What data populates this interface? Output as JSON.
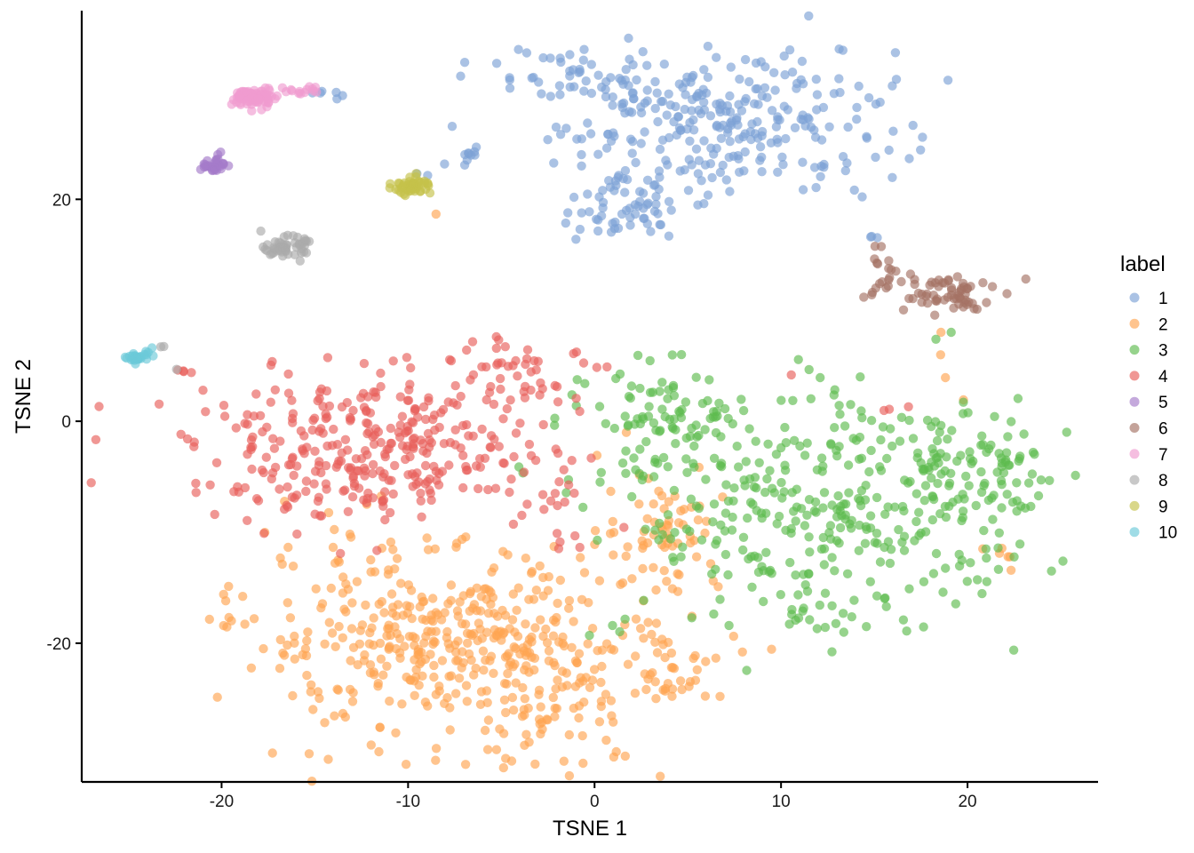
{
  "chart_data": {
    "type": "scatter",
    "title": "",
    "xlabel": "TSNE 1",
    "ylabel": "TSNE 2",
    "xlim": [
      -27.5,
      27
    ],
    "ylim": [
      -32.5,
      37
    ],
    "xticks": [
      -20,
      -10,
      0,
      10,
      20
    ],
    "yticks": [
      -20,
      0,
      20
    ],
    "xtick_labels": [
      "-20",
      "-10",
      "0",
      "10",
      "20"
    ],
    "ytick_labels": [
      "-20",
      "0",
      "20"
    ],
    "grid": false,
    "point_opacity": 0.65,
    "legend": {
      "title": "label",
      "position": "right"
    },
    "series": [
      {
        "name": "1",
        "color": "#7CA1D6",
        "clusters": [
          {
            "cx": 7,
            "cy": 27,
            "sx": 4.5,
            "sy": 3.2,
            "n": 280
          },
          {
            "cx": 1.5,
            "cy": 19.2,
            "sx": 1.8,
            "sy": 1.4,
            "n": 60
          },
          {
            "cx": -1,
            "cy": 31,
            "sx": 2.5,
            "sy": 1.5,
            "n": 40
          }
        ],
        "trails": [
          {
            "from": [
              -8,
              23.3
            ],
            "to": [
              -6,
              24.5
            ],
            "n": 10,
            "jitter": 0.3
          },
          {
            "from": [
              -15,
              29.7
            ],
            "to": [
              -13.5,
              29.5
            ],
            "n": 6,
            "jitter": 0.2
          },
          {
            "from": [
              14.8,
              17
            ],
            "to": [
              15.1,
              16.5
            ],
            "n": 3,
            "jitter": 0.15
          },
          {
            "from": [
              -9.5,
              22.5
            ],
            "to": [
              -9,
              22.2
            ],
            "n": 2,
            "jitter": 0.1
          }
        ]
      },
      {
        "name": "2",
        "color": "#FFA552",
        "clusters": [
          {
            "cx": -9.5,
            "cy": -19.5,
            "sx": 4.8,
            "sy": 4.3,
            "n": 340
          },
          {
            "cx": -2.5,
            "cy": -23.5,
            "sx": 3.2,
            "sy": 4.2,
            "n": 140
          },
          {
            "cx": 3.5,
            "cy": -9.5,
            "sx": 1.6,
            "sy": 3,
            "n": 70
          },
          {
            "cx": 4.5,
            "cy": -22.5,
            "sx": 2.2,
            "sy": 1.8,
            "n": 40
          }
        ],
        "trails": [
          {
            "from": [
              -20,
              -15
            ],
            "to": [
              -19.5,
              -18.8
            ],
            "n": 4,
            "jitter": 0.3
          },
          {
            "from": [
              21.5,
              -11.5
            ],
            "to": [
              22.5,
              -12.5
            ],
            "n": 6,
            "jitter": 0.4
          },
          {
            "from": [
              18.5,
              8
            ],
            "to": [
              19.5,
              2
            ],
            "n": 4,
            "jitter": 0.2
          },
          {
            "from": [
              -8.5,
              18.7
            ],
            "to": [
              -8.5,
              18.7
            ],
            "n": 1,
            "jitter": 0.05
          },
          {
            "from": [
              8.2,
              -20.8
            ],
            "to": [
              9.5,
              -20.5
            ],
            "n": 2,
            "jitter": 0.1
          }
        ]
      },
      {
        "name": "3",
        "color": "#5DBB4E",
        "clusters": [
          {
            "cx": 12.5,
            "cy": -8.5,
            "sx": 5.5,
            "sy": 5,
            "n": 320
          },
          {
            "cx": 20.5,
            "cy": -5.5,
            "sx": 2.5,
            "sy": 3.2,
            "n": 90
          },
          {
            "cx": 4,
            "cy": 0,
            "sx": 2.2,
            "sy": 2.5,
            "n": 90
          },
          {
            "cx": 11.2,
            "cy": -17.5,
            "sx": 0.8,
            "sy": 1.3,
            "n": 15
          }
        ],
        "trails": [
          {
            "from": [
              13.5,
              2
            ],
            "to": [
              13.5,
              -1
            ],
            "n": 6,
            "jitter": 0.4
          },
          {
            "from": [
              18.3,
              7.5
            ],
            "to": [
              18.3,
              7.5
            ],
            "n": 1,
            "jitter": 0.05
          },
          {
            "from": [
              -2,
              -0.5
            ],
            "to": [
              -0.5,
              3.5
            ],
            "n": 5,
            "jitter": 0.3
          },
          {
            "from": [
              0.5,
              -19.5
            ],
            "to": [
              2.5,
              -16.5
            ],
            "n": 4,
            "jitter": 0.4
          }
        ]
      },
      {
        "name": "4",
        "color": "#E8605B",
        "clusters": [
          {
            "cx": -12,
            "cy": -2.5,
            "sx": 4.8,
            "sy": 3.2,
            "n": 330
          },
          {
            "cx": -4,
            "cy": 4.5,
            "sx": 2.5,
            "sy": 1.8,
            "n": 50
          },
          {
            "cx": -2.5,
            "cy": -7,
            "sx": 1.5,
            "sy": 2.2,
            "n": 18
          }
        ],
        "trails": [
          {
            "from": [
              -22.2,
              4.5
            ],
            "to": [
              -21.8,
              4.4
            ],
            "n": 4,
            "jitter": 0.15
          },
          {
            "from": [
              10.5,
              4.2
            ],
            "to": [
              10.5,
              4.2
            ],
            "n": 1,
            "jitter": 0.05
          },
          {
            "from": [
              15,
              1
            ],
            "to": [
              16.5,
              1.2
            ],
            "n": 3,
            "jitter": 0.2
          }
        ]
      },
      {
        "name": "5",
        "color": "#A47BC9",
        "clusters": [
          {
            "cx": -20.5,
            "cy": 23.1,
            "sx": 0.35,
            "sy": 0.3,
            "n": 28
          }
        ],
        "trails": [
          {
            "from": [
              -20.3,
              23.4
            ],
            "to": [
              -20.2,
              24.2
            ],
            "n": 4,
            "jitter": 0.1
          }
        ]
      },
      {
        "name": "6",
        "color": "#A47264",
        "clusters": [
          {
            "cx": 18.5,
            "cy": 11.5,
            "sx": 1.4,
            "sy": 1.1,
            "n": 60
          },
          {
            "cx": 15.5,
            "cy": 13.5,
            "sx": 0.7,
            "sy": 1,
            "n": 14
          }
        ],
        "trails": [
          {
            "from": [
              14.6,
              11.5
            ],
            "to": [
              15.2,
              11.8
            ],
            "n": 4,
            "jitter": 0.2
          },
          {
            "from": [
              19.5,
              10.5
            ],
            "to": [
              20.3,
              10.4
            ],
            "n": 3,
            "jitter": 0.15
          }
        ]
      },
      {
        "name": "7",
        "color": "#F09BCF",
        "clusters": [
          {
            "cx": -18.2,
            "cy": 29.2,
            "sx": 0.55,
            "sy": 0.45,
            "n": 85
          }
        ],
        "trails": [
          {
            "from": [
              -16.5,
              29.6
            ],
            "to": [
              -14.8,
              29.8
            ],
            "n": 14,
            "jitter": 0.15
          }
        ]
      },
      {
        "name": "8",
        "color": "#AAAAAA",
        "clusters": [
          {
            "cx": -16.6,
            "cy": 15.7,
            "sx": 0.55,
            "sy": 0.45,
            "n": 55
          }
        ],
        "trails": [
          {
            "from": [
              -23.2,
              6.7
            ],
            "to": [
              -23,
              6.8
            ],
            "n": 2,
            "jitter": 0.1
          },
          {
            "from": [
              -22.4,
              4.7
            ],
            "to": [
              -22.4,
              4.7
            ],
            "n": 1,
            "jitter": 0.05
          }
        ]
      },
      {
        "name": "9",
        "color": "#C4C24A",
        "clusters": [
          {
            "cx": -9.8,
            "cy": 21.2,
            "sx": 0.5,
            "sy": 0.35,
            "n": 50
          }
        ],
        "trails": [
          {
            "from": [
              -9.6,
              22.3
            ],
            "to": [
              -9.6,
              22.3
            ],
            "n": 1,
            "jitter": 0.05
          }
        ]
      },
      {
        "name": "10",
        "color": "#6CCAD8",
        "clusters": [
          {
            "cx": -24.5,
            "cy": 5.7,
            "sx": 0.3,
            "sy": 0.22,
            "n": 28
          }
        ],
        "trails": [
          {
            "from": [
              -24.2,
              6
            ],
            "to": [
              -23.8,
              6.5
            ],
            "n": 3,
            "jitter": 0.1
          }
        ]
      }
    ]
  }
}
